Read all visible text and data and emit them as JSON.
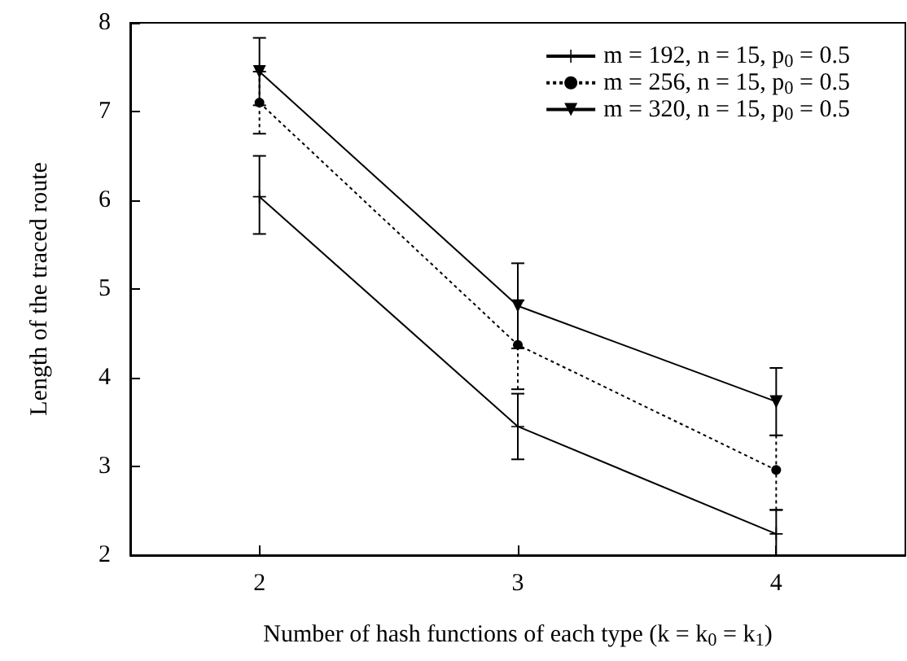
{
  "chart_data": {
    "type": "line",
    "xlabel": "Number of hash functions of each type (k = k$_{0}$ = k$_{1}$)",
    "ylabel": "Length of the traced route",
    "x": [
      2,
      3,
      4
    ],
    "xlim": [
      1.5,
      4.5
    ],
    "xticks": [
      2,
      3,
      4
    ],
    "ylim": [
      2,
      8
    ],
    "yticks": [
      2,
      3,
      4,
      5,
      6,
      7,
      8
    ],
    "grid": false,
    "legend": "top right",
    "series": [
      {
        "name": "m = 192, n = 15, p$_{0}$ = 0.5",
        "color": "#000000",
        "marker": "cross",
        "line_style": "solid",
        "values": [
          6.04,
          3.45,
          2.24
        ],
        "errors": [
          [
            5.62,
            6.5
          ],
          [
            3.08,
            3.82
          ],
          [
            2.0,
            2.51
          ]
        ]
      },
      {
        "name": "m = 256, n = 15, p$_{0}$ = 0.5",
        "color": "#000000",
        "marker": "circle",
        "line_style": "dotted",
        "values": [
          7.1,
          4.37,
          2.96
        ],
        "errors": [
          [
            6.75,
            7.45
          ],
          [
            3.87,
            4.87
          ],
          [
            2.51,
            3.35
          ]
        ]
      },
      {
        "name": "m = 320, n = 15, p$_{0}$ = 0.5",
        "color": "#000000",
        "marker": "triangle",
        "line_style": "solid",
        "values": [
          7.45,
          4.81,
          3.73
        ],
        "errors": [
          [
            7.07,
            7.83
          ],
          [
            4.33,
            5.29
          ],
          [
            3.35,
            4.11
          ]
        ]
      }
    ]
  }
}
